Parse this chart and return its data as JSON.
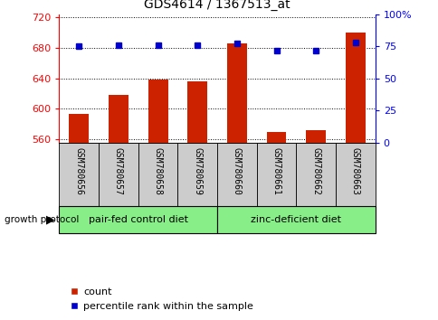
{
  "title": "GDS4614 / 1367513_at",
  "samples": [
    "GSM780656",
    "GSM780657",
    "GSM780658",
    "GSM780659",
    "GSM780660",
    "GSM780661",
    "GSM780662",
    "GSM780663"
  ],
  "counts": [
    594,
    618,
    638,
    636,
    686,
    570,
    572,
    700
  ],
  "percentiles": [
    75,
    76,
    76,
    76,
    77,
    72,
    72,
    78
  ],
  "ylim_left": [
    556,
    724
  ],
  "ylim_right": [
    0,
    100
  ],
  "yticks_left": [
    560,
    600,
    640,
    680,
    720
  ],
  "yticks_right": [
    0,
    25,
    50,
    75,
    100
  ],
  "yticklabels_right": [
    "0",
    "25",
    "50",
    "75",
    "100%"
  ],
  "bar_color": "#cc2200",
  "dot_color": "#0000cc",
  "bar_width": 0.5,
  "group1_label": "pair-fed control diet",
  "group2_label": "zinc-deficient diet",
  "group1_indices": [
    0,
    1,
    2,
    3
  ],
  "group2_indices": [
    4,
    5,
    6,
    7
  ],
  "group_label_prefix": "growth protocol",
  "legend_count_label": "count",
  "legend_percentile_label": "percentile rank within the sample",
  "group_color": "#88ee88",
  "tick_area_color": "#cccccc",
  "background_color": "#ffffff"
}
